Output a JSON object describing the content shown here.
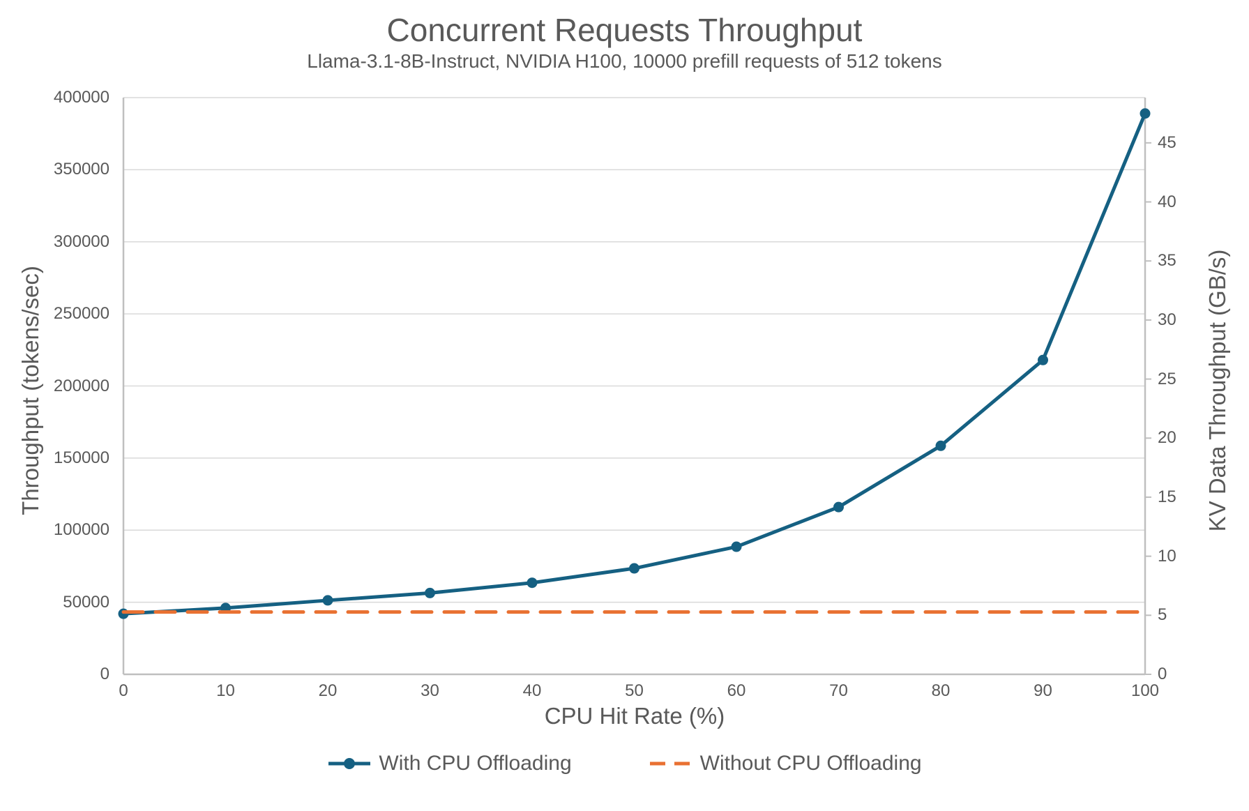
{
  "title": "Concurrent Requests Throughput",
  "subtitle": "Llama-3.1-8B-Instruct, NVIDIA H100, 10000 prefill requests of 512 tokens",
  "chart_data": {
    "type": "line",
    "x": [
      0,
      10,
      20,
      30,
      40,
      50,
      60,
      70,
      80,
      90,
      100
    ],
    "series": [
      {
        "name": "With CPU Offloading",
        "color": "#156082",
        "style": "solid",
        "markers": true,
        "values": [
          42000,
          46000,
          51300,
          56400,
          63500,
          73500,
          88500,
          116000,
          158500,
          218000,
          389000
        ]
      },
      {
        "name": "Without CPU Offloading",
        "color": "#E97132",
        "style": "dashed",
        "markers": false,
        "values": [
          43200,
          43200,
          43200,
          43200,
          43200,
          43200,
          43200,
          43200,
          43200,
          43200,
          43200
        ]
      }
    ],
    "xlabel": "CPU Hit Rate (%)",
    "ylabel": "Throughput (tokens/sec)",
    "y2label": "KV Data Throughput (GB/s)",
    "xlim": [
      0,
      100
    ],
    "ylim": [
      0,
      400000
    ],
    "y2lim": [
      0,
      48.83
    ],
    "x_ticks": [
      0,
      10,
      20,
      30,
      40,
      50,
      60,
      70,
      80,
      90,
      100
    ],
    "y_ticks": [
      0,
      50000,
      100000,
      150000,
      200000,
      250000,
      300000,
      350000,
      400000
    ],
    "y2_ticks": [
      0,
      5,
      10,
      15,
      20,
      25,
      30,
      35,
      40,
      45
    ],
    "grid": "horizontal",
    "legend_position": "bottom"
  },
  "colors": {
    "series_blue": "#156082",
    "series_orange": "#E97132",
    "gridline": "#D9D9D9",
    "axis_line": "#BFBFBF",
    "text_gray": "#595959"
  }
}
